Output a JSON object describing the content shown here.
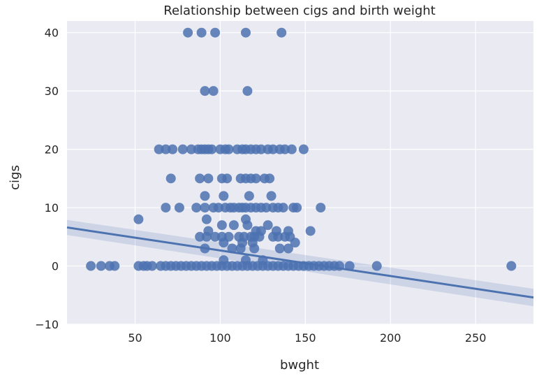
{
  "chart_data": {
    "type": "scatter",
    "title": "Relationship between cigs and birth weight",
    "xlabel": "bwght",
    "ylabel": "cigs",
    "xlim": [
      10,
      284
    ],
    "ylim": [
      -10,
      42
    ],
    "xticks": [
      50,
      100,
      150,
      200,
      250
    ],
    "yticks": [
      -10,
      0,
      10,
      20,
      30,
      40
    ],
    "xtick_labels": [
      "50",
      "100",
      "150",
      "200",
      "250"
    ],
    "ytick_labels": [
      "−10",
      "0",
      "10",
      "20",
      "30",
      "40"
    ],
    "grid": true,
    "legend": "none",
    "colors": {
      "background": "#eaeaf2",
      "grid": "#ffffff",
      "points": "#4c72b0",
      "line": "#4c72b0",
      "band": "#4c72b0"
    },
    "regression": {
      "x": [
        10,
        284
      ],
      "y": [
        6.6,
        -5.4
      ],
      "ci_lower": [
        5.3,
        -6.9
      ],
      "ci_upper": [
        7.9,
        -3.9
      ]
    },
    "points": [
      [
        81,
        40
      ],
      [
        89,
        40
      ],
      [
        97,
        40
      ],
      [
        115,
        40
      ],
      [
        136,
        40
      ],
      [
        91,
        30
      ],
      [
        96,
        30
      ],
      [
        116,
        30
      ],
      [
        64,
        20
      ],
      [
        68,
        20
      ],
      [
        72,
        20
      ],
      [
        78,
        20
      ],
      [
        83,
        20
      ],
      [
        87,
        20
      ],
      [
        89,
        20
      ],
      [
        91,
        20
      ],
      [
        93,
        20
      ],
      [
        95,
        20
      ],
      [
        100,
        20
      ],
      [
        103,
        20
      ],
      [
        105,
        20
      ],
      [
        110,
        20
      ],
      [
        113,
        20
      ],
      [
        115,
        20
      ],
      [
        118,
        20
      ],
      [
        121,
        20
      ],
      [
        124,
        20
      ],
      [
        128,
        20
      ],
      [
        131,
        20
      ],
      [
        135,
        20
      ],
      [
        138,
        20
      ],
      [
        142,
        20
      ],
      [
        149,
        20
      ],
      [
        71,
        15
      ],
      [
        88,
        15
      ],
      [
        93,
        15
      ],
      [
        101,
        15
      ],
      [
        104,
        15
      ],
      [
        112,
        15
      ],
      [
        115,
        15
      ],
      [
        118,
        15
      ],
      [
        121,
        15
      ],
      [
        126,
        15
      ],
      [
        129,
        15
      ],
      [
        91,
        12
      ],
      [
        102,
        12
      ],
      [
        117,
        12
      ],
      [
        130,
        12
      ],
      [
        68,
        10
      ],
      [
        76,
        10
      ],
      [
        86,
        10
      ],
      [
        91,
        10
      ],
      [
        96,
        10
      ],
      [
        99,
        10
      ],
      [
        103,
        10
      ],
      [
        106,
        10
      ],
      [
        108,
        10
      ],
      [
        111,
        10
      ],
      [
        113,
        10
      ],
      [
        115,
        10
      ],
      [
        118,
        10
      ],
      [
        121,
        10
      ],
      [
        124,
        10
      ],
      [
        127,
        10
      ],
      [
        131,
        10
      ],
      [
        134,
        10
      ],
      [
        137,
        10
      ],
      [
        143,
        10
      ],
      [
        145,
        10
      ],
      [
        159,
        10
      ],
      [
        52,
        8
      ],
      [
        92,
        8
      ],
      [
        115,
        8
      ],
      [
        128,
        7
      ],
      [
        101,
        7
      ],
      [
        108,
        7
      ],
      [
        116,
        7
      ],
      [
        121,
        6
      ],
      [
        124,
        6
      ],
      [
        133,
        6
      ],
      [
        140,
        6
      ],
      [
        153,
        6
      ],
      [
        93,
        6
      ],
      [
        88,
        5
      ],
      [
        92,
        5
      ],
      [
        97,
        5
      ],
      [
        101,
        5
      ],
      [
        105,
        5
      ],
      [
        111,
        5
      ],
      [
        114,
        5
      ],
      [
        118,
        5
      ],
      [
        120,
        5
      ],
      [
        123,
        5
      ],
      [
        131,
        5
      ],
      [
        134,
        5
      ],
      [
        138,
        5
      ],
      [
        141,
        5
      ],
      [
        102,
        4
      ],
      [
        113,
        4
      ],
      [
        119,
        4
      ],
      [
        144,
        4
      ],
      [
        107,
        3
      ],
      [
        120,
        3
      ],
      [
        135,
        3
      ],
      [
        140,
        3
      ],
      [
        91,
        3
      ],
      [
        112,
        3
      ],
      [
        115,
        1
      ],
      [
        102,
        1
      ],
      [
        125,
        1
      ],
      [
        24,
        0
      ],
      [
        30,
        0
      ],
      [
        35,
        0
      ],
      [
        38,
        0
      ],
      [
        52,
        0
      ],
      [
        55,
        0
      ],
      [
        57,
        0
      ],
      [
        60,
        0
      ],
      [
        65,
        0
      ],
      [
        68,
        0
      ],
      [
        71,
        0
      ],
      [
        74,
        0
      ],
      [
        77,
        0
      ],
      [
        80,
        0
      ],
      [
        83,
        0
      ],
      [
        86,
        0
      ],
      [
        89,
        0
      ],
      [
        92,
        0
      ],
      [
        95,
        0
      ],
      [
        98,
        0
      ],
      [
        101,
        0
      ],
      [
        104,
        0
      ],
      [
        107,
        0
      ],
      [
        110,
        0
      ],
      [
        113,
        0
      ],
      [
        116,
        0
      ],
      [
        119,
        0
      ],
      [
        122,
        0
      ],
      [
        125,
        0
      ],
      [
        128,
        0
      ],
      [
        131,
        0
      ],
      [
        134,
        0
      ],
      [
        137,
        0
      ],
      [
        140,
        0
      ],
      [
        143,
        0
      ],
      [
        146,
        0
      ],
      [
        149,
        0
      ],
      [
        152,
        0
      ],
      [
        155,
        0
      ],
      [
        158,
        0
      ],
      [
        161,
        0
      ],
      [
        164,
        0
      ],
      [
        167,
        0
      ],
      [
        170,
        0
      ],
      [
        176,
        0
      ],
      [
        192,
        0
      ],
      [
        271,
        0
      ]
    ]
  }
}
